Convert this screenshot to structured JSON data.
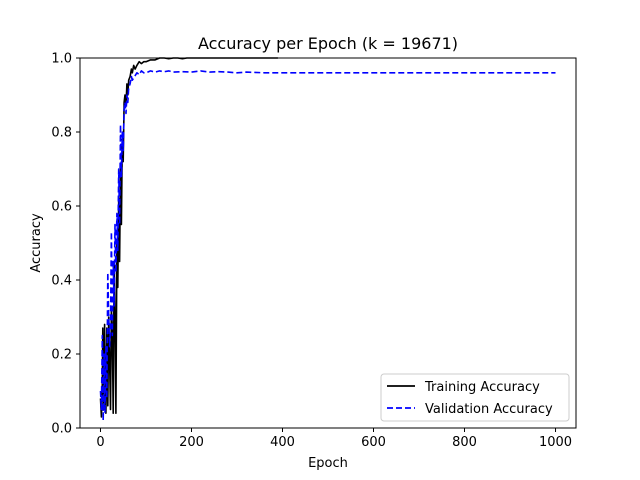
{
  "chart_data": {
    "type": "line",
    "title": "Accuracy per Epoch (k = 19671)",
    "xlabel": "Epoch",
    "ylabel": "Accuracy",
    "xlim": [
      -45,
      1045
    ],
    "ylim": [
      0.0,
      1.0
    ],
    "x_ticks": [
      0,
      200,
      400,
      600,
      800,
      1000
    ],
    "x_tick_labels": [
      "0",
      "200",
      "400",
      "600",
      "800",
      "1000"
    ],
    "y_ticks": [
      0.0,
      0.2,
      0.4,
      0.6,
      0.8,
      1.0
    ],
    "y_tick_labels": [
      "0.0",
      "0.2",
      "0.4",
      "0.6",
      "0.8",
      "1.0"
    ],
    "grid": false,
    "legend_position": "lower-right",
    "series": [
      {
        "name": "Training Accuracy",
        "color": "#000000",
        "style": "solid",
        "x": [
          0,
          2,
          4,
          5,
          7,
          9,
          10,
          12,
          14,
          16,
          18,
          20,
          22,
          24,
          26,
          28,
          30,
          32,
          34,
          36,
          38,
          40,
          42,
          44,
          46,
          48,
          50,
          52,
          54,
          56,
          58,
          60,
          62,
          65,
          68,
          70,
          73,
          76,
          80,
          85,
          90,
          95,
          100,
          110,
          120,
          130,
          140,
          150,
          160,
          170,
          180,
          190,
          200,
          220,
          240,
          260,
          280,
          300,
          320,
          340,
          360,
          380,
          390
        ],
        "y": [
          0.08,
          0.03,
          0.12,
          0.27,
          0.05,
          0.28,
          0.1,
          0.04,
          0.27,
          0.06,
          0.3,
          0.18,
          0.05,
          0.32,
          0.27,
          0.04,
          0.45,
          0.3,
          0.04,
          0.5,
          0.38,
          0.62,
          0.45,
          0.7,
          0.55,
          0.78,
          0.72,
          0.88,
          0.9,
          0.87,
          0.93,
          0.9,
          0.94,
          0.95,
          0.97,
          0.96,
          0.98,
          0.97,
          0.98,
          0.99,
          0.985,
          0.99,
          0.99,
          0.995,
          0.995,
          1.0,
          1.0,
          0.998,
          1.0,
          1.0,
          0.998,
          1.0,
          1.0,
          1.0,
          1.0,
          1.0,
          1.0,
          1.0,
          1.0,
          1.0,
          1.0,
          1.0,
          1.0
        ]
      },
      {
        "name": "Validation Accuracy",
        "color": "#0000ff",
        "style": "dashed",
        "x": [
          0,
          2,
          4,
          6,
          8,
          10,
          12,
          14,
          16,
          18,
          20,
          22,
          24,
          26,
          28,
          30,
          32,
          34,
          36,
          38,
          40,
          42,
          44,
          46,
          48,
          50,
          52,
          54,
          56,
          58,
          60,
          62,
          65,
          68,
          70,
          75,
          80,
          85,
          90,
          95,
          100,
          110,
          120,
          130,
          140,
          150,
          160,
          180,
          200,
          220,
          240,
          260,
          280,
          300,
          320,
          340,
          360,
          380,
          400,
          450,
          500,
          600,
          700,
          800,
          900,
          1000
        ],
        "y": [
          0.1,
          0.05,
          0.25,
          0.02,
          0.2,
          0.04,
          0.22,
          0.08,
          0.42,
          0.3,
          0.22,
          0.27,
          0.53,
          0.25,
          0.45,
          0.33,
          0.55,
          0.42,
          0.58,
          0.48,
          0.7,
          0.55,
          0.82,
          0.68,
          0.8,
          0.75,
          0.86,
          0.88,
          0.85,
          0.9,
          0.88,
          0.92,
          0.93,
          0.95,
          0.94,
          0.95,
          0.96,
          0.955,
          0.965,
          0.96,
          0.96,
          0.965,
          0.962,
          0.965,
          0.963,
          0.965,
          0.962,
          0.963,
          0.962,
          0.965,
          0.962,
          0.963,
          0.962,
          0.96,
          0.962,
          0.961,
          0.96,
          0.96,
          0.96,
          0.96,
          0.96,
          0.96,
          0.96,
          0.96,
          0.96,
          0.96
        ]
      }
    ]
  }
}
